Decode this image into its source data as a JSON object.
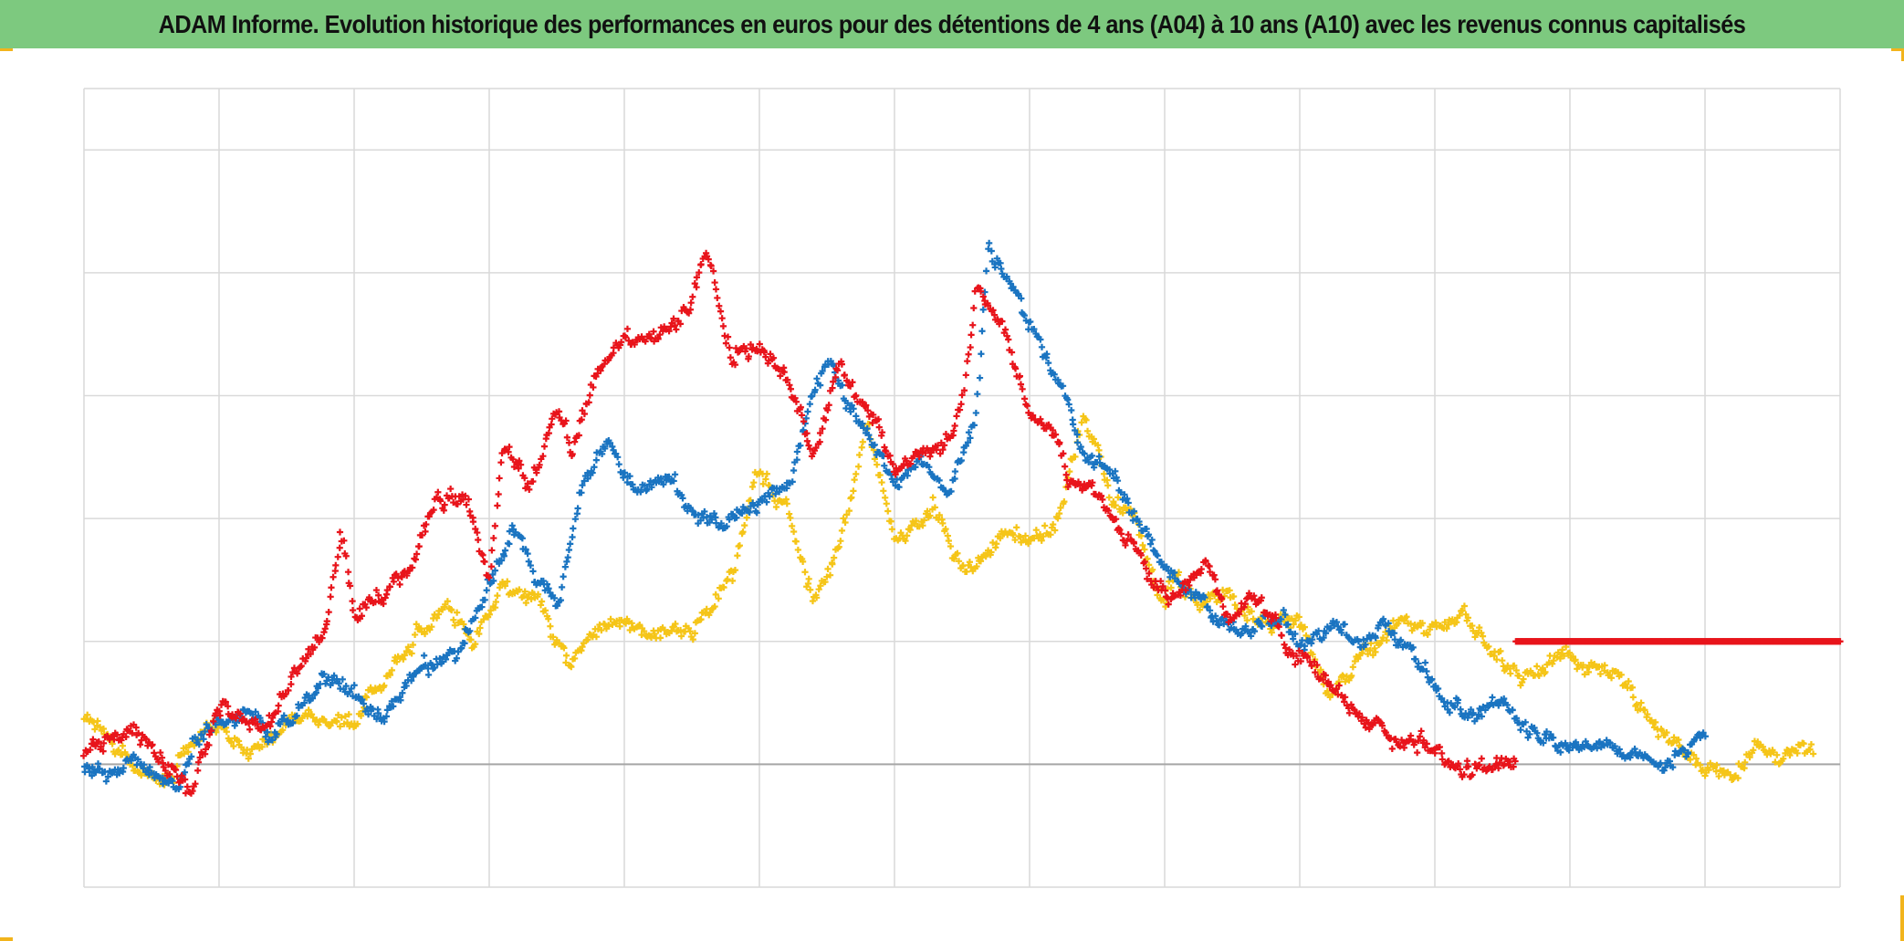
{
  "title": "ADAM Informe. Evolution historique des performances en euros pour des détentions de 4 ans (A04) à 10 ans (A10) avec les revenus connus capitalisés",
  "colors": {
    "title_background": "#7dc97f",
    "frame_corners": "#f2b41c",
    "grid": "#d9d9d9",
    "baseline": "#a6a6a6"
  },
  "chart_data": {
    "type": "scatter",
    "marker": "plus",
    "grid": true,
    "legend": "none",
    "tick_labels_visible": false,
    "x_domain": [
      0,
      13
    ],
    "y_domain": [
      -1,
      5.5
    ],
    "x_gridlines": [
      0,
      1,
      2,
      3,
      4,
      5,
      6,
      7,
      8,
      9,
      10,
      11,
      12,
      13
    ],
    "y_gridlines": [
      -1,
      0,
      1,
      2,
      3,
      4,
      5,
      6
    ],
    "baseline_y": 0,
    "series": [
      {
        "color": "#f5c518",
        "anchors": [
          [
            0.0,
            0.4
          ],
          [
            0.3,
            0.1
          ],
          [
            0.6,
            -0.2
          ],
          [
            0.8,
            0.1
          ],
          [
            1.0,
            0.3
          ],
          [
            1.2,
            0.05
          ],
          [
            1.5,
            0.4
          ],
          [
            1.75,
            0.35
          ],
          [
            2.0,
            0.3
          ],
          [
            2.3,
            0.9
          ],
          [
            2.5,
            1.1
          ],
          [
            2.7,
            1.3
          ],
          [
            2.9,
            1.0
          ],
          [
            3.1,
            1.45
          ],
          [
            3.4,
            1.3
          ],
          [
            3.5,
            1.1
          ],
          [
            3.6,
            0.8
          ],
          [
            3.8,
            1.1
          ],
          [
            4.0,
            1.2
          ],
          [
            4.2,
            1.1
          ],
          [
            4.5,
            1.1
          ],
          [
            4.7,
            1.4
          ],
          [
            4.8,
            1.6
          ],
          [
            5.0,
            2.4
          ],
          [
            5.2,
            2.0
          ],
          [
            5.4,
            1.4
          ],
          [
            5.6,
            1.8
          ],
          [
            5.8,
            2.8
          ],
          [
            6.0,
            1.8
          ],
          [
            6.3,
            2.1
          ],
          [
            6.5,
            1.6
          ],
          [
            6.8,
            1.9
          ],
          [
            7.0,
            1.8
          ],
          [
            7.2,
            2.0
          ],
          [
            7.4,
            2.8
          ],
          [
            7.6,
            2.2
          ],
          [
            7.8,
            2.0
          ],
          [
            8.0,
            1.3
          ],
          [
            8.1,
            1.5
          ],
          [
            8.3,
            1.3
          ],
          [
            8.5,
            1.4
          ],
          [
            8.8,
            1.1
          ],
          [
            9.0,
            1.2
          ],
          [
            9.2,
            0.6
          ],
          [
            9.5,
            0.9
          ],
          [
            9.7,
            1.1
          ],
          [
            10.0,
            1.1
          ],
          [
            10.2,
            1.2
          ],
          [
            10.5,
            0.8
          ],
          [
            10.8,
            0.7
          ],
          [
            11.0,
            0.9
          ],
          [
            11.3,
            0.8
          ],
          [
            11.6,
            0.3
          ],
          [
            11.9,
            0.1
          ],
          [
            12.2,
            -0.1
          ],
          [
            12.6,
            0.1
          ],
          [
            12.8,
            0.2
          ]
        ],
        "noise": 0.09,
        "count": 1100
      },
      {
        "color": "#1a74c1",
        "anchors": [
          [
            0.0,
            -0.05
          ],
          [
            0.3,
            -0.1
          ],
          [
            0.5,
            -0.1
          ],
          [
            0.7,
            -0.2
          ],
          [
            0.8,
            0.1
          ],
          [
            1.0,
            0.3
          ],
          [
            1.2,
            0.4
          ],
          [
            1.4,
            0.2
          ],
          [
            1.6,
            0.5
          ],
          [
            1.8,
            0.7
          ],
          [
            2.0,
            0.6
          ],
          [
            2.2,
            0.4
          ],
          [
            2.4,
            0.7
          ],
          [
            2.6,
            0.8
          ],
          [
            2.8,
            0.9
          ],
          [
            3.0,
            1.5
          ],
          [
            3.2,
            1.9
          ],
          [
            3.3,
            1.7
          ],
          [
            3.5,
            1.3
          ],
          [
            3.7,
            2.4
          ],
          [
            3.9,
            2.6
          ],
          [
            4.1,
            2.2
          ],
          [
            4.3,
            2.3
          ],
          [
            4.5,
            2.0
          ],
          [
            4.7,
            1.9
          ],
          [
            5.0,
            2.1
          ],
          [
            5.2,
            2.2
          ],
          [
            5.4,
            3.0
          ],
          [
            5.5,
            3.3
          ],
          [
            5.7,
            2.9
          ],
          [
            5.9,
            2.5
          ],
          [
            6.0,
            2.3
          ],
          [
            6.2,
            2.5
          ],
          [
            6.4,
            2.2
          ],
          [
            6.6,
            2.8
          ],
          [
            6.7,
            4.3
          ],
          [
            6.8,
            4.0
          ],
          [
            7.0,
            3.6
          ],
          [
            7.2,
            3.2
          ],
          [
            7.4,
            2.6
          ],
          [
            7.6,
            2.4
          ],
          [
            7.8,
            2.0
          ],
          [
            8.0,
            1.6
          ],
          [
            8.2,
            1.4
          ],
          [
            8.4,
            1.2
          ],
          [
            8.6,
            1.1
          ],
          [
            8.8,
            1.2
          ],
          [
            9.0,
            1.0
          ],
          [
            9.2,
            1.1
          ],
          [
            9.4,
            1.0
          ],
          [
            9.6,
            1.2
          ],
          [
            9.8,
            1.0
          ],
          [
            10.0,
            0.6
          ],
          [
            10.2,
            0.4
          ],
          [
            10.5,
            0.5
          ],
          [
            10.7,
            0.3
          ],
          [
            11.0,
            0.1
          ],
          [
            11.3,
            0.2
          ],
          [
            11.6,
            0.0
          ],
          [
            11.9,
            0.1
          ],
          [
            12.0,
            0.2
          ]
        ],
        "noise": 0.08,
        "count": 1100
      },
      {
        "color": "#e8141b",
        "anchors": [
          [
            0.0,
            0.1
          ],
          [
            0.3,
            0.2
          ],
          [
            0.5,
            0.15
          ],
          [
            0.7,
            -0.1
          ],
          [
            0.8,
            -0.2
          ],
          [
            1.0,
            0.5
          ],
          [
            1.2,
            0.3
          ],
          [
            1.4,
            0.4
          ],
          [
            1.6,
            0.8
          ],
          [
            1.8,
            1.1
          ],
          [
            1.9,
            1.9
          ],
          [
            2.0,
            1.2
          ],
          [
            2.2,
            1.4
          ],
          [
            2.4,
            1.6
          ],
          [
            2.6,
            2.1
          ],
          [
            2.8,
            2.2
          ],
          [
            3.0,
            1.5
          ],
          [
            3.1,
            2.6
          ],
          [
            3.3,
            2.3
          ],
          [
            3.5,
            2.9
          ],
          [
            3.6,
            2.5
          ],
          [
            3.8,
            3.2
          ],
          [
            4.0,
            3.4
          ],
          [
            4.2,
            3.4
          ],
          [
            4.5,
            3.8
          ],
          [
            4.6,
            4.2
          ],
          [
            4.8,
            3.3
          ],
          [
            5.0,
            3.5
          ],
          [
            5.2,
            3.1
          ],
          [
            5.4,
            2.5
          ],
          [
            5.6,
            3.3
          ],
          [
            5.8,
            2.9
          ],
          [
            6.0,
            2.4
          ],
          [
            6.2,
            2.5
          ],
          [
            6.4,
            2.6
          ],
          [
            6.5,
            3.0
          ],
          [
            6.6,
            3.9
          ],
          [
            6.8,
            3.6
          ],
          [
            6.9,
            3.3
          ],
          [
            7.0,
            2.9
          ],
          [
            7.2,
            2.7
          ],
          [
            7.3,
            2.3
          ],
          [
            7.5,
            2.2
          ],
          [
            7.7,
            1.9
          ],
          [
            7.9,
            1.5
          ],
          [
            8.1,
            1.4
          ],
          [
            8.3,
            1.6
          ],
          [
            8.5,
            1.2
          ],
          [
            8.7,
            1.3
          ],
          [
            8.9,
            1.0
          ],
          [
            9.1,
            0.8
          ],
          [
            9.3,
            0.6
          ],
          [
            9.5,
            0.4
          ],
          [
            9.7,
            0.2
          ],
          [
            9.9,
            0.2
          ],
          [
            10.1,
            0.0
          ],
          [
            10.3,
            -0.1
          ],
          [
            10.5,
            -0.05
          ],
          [
            10.6,
            0.0
          ]
        ],
        "noise": 0.09,
        "count": 1000
      },
      {
        "color": "#e8141b",
        "flat": true,
        "x_range": [
          10.6,
          13.0
        ],
        "y": 1.0,
        "count": 320
      }
    ]
  }
}
